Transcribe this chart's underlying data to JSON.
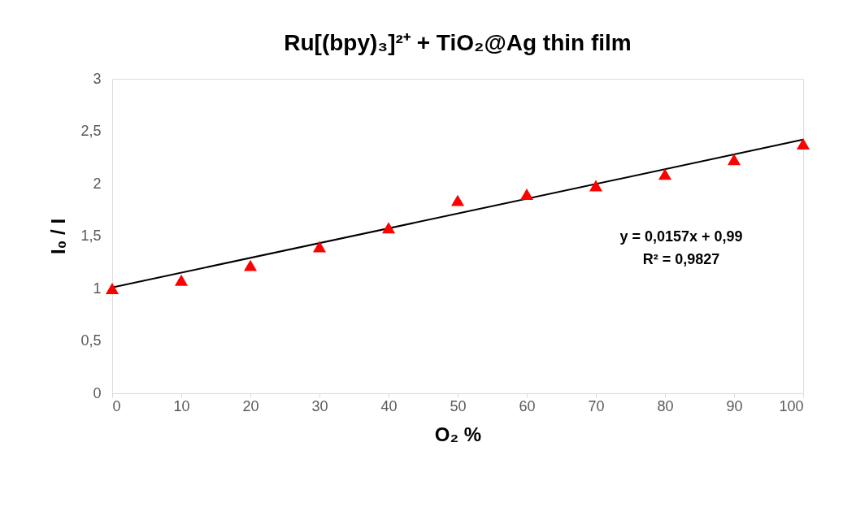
{
  "chart_data": {
    "type": "scatter",
    "title": "Ru[(bpy)₃]²⁺ + TiO₂@Ag thin film",
    "xlabel": "O₂ %",
    "ylabel": "I₀ / I",
    "x": [
      0,
      10,
      20,
      30,
      40,
      50,
      60,
      70,
      80,
      90,
      100
    ],
    "series": [
      {
        "color": "#ff0000",
        "marker": "triangle",
        "values": [
          1.0,
          1.08,
          1.22,
          1.4,
          1.58,
          1.84,
          1.9,
          1.98,
          2.09,
          2.23,
          2.38
        ]
      },
      {
        "type": "line",
        "color": "#000000",
        "x": [
          0,
          100
        ],
        "values": [
          1.01,
          2.42
        ]
      }
    ],
    "xlim": [
      0,
      100
    ],
    "xticks": [
      0,
      10,
      20,
      30,
      40,
      50,
      60,
      70,
      80,
      90,
      100
    ],
    "ylim": [
      0,
      3
    ],
    "yticks": [
      0,
      {
        "value": 0.5,
        "label": "0,5"
      },
      1,
      {
        "value": 1.5,
        "label": "1,5"
      },
      2,
      {
        "value": 2.5,
        "label": "2,5"
      },
      3
    ],
    "annotations": [
      "y = 0,0157x + 0,99",
      "R² = 0,9827"
    ]
  }
}
